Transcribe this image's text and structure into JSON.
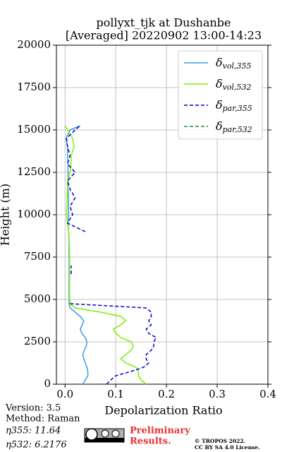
{
  "chart_data": {
    "type": "line",
    "title": "pollyxt_tjk at Dushanbe",
    "subtitle": "[Averaged] 20220902 13:00-14:23",
    "xlabel": "Depolarization Ratio",
    "ylabel": "Height (m)",
    "xlim": [
      -0.017,
      0.4
    ],
    "ylim": [
      0,
      20000
    ],
    "xticks": [
      {
        "value": 0,
        "label": "0.0"
      },
      0.1,
      0.2,
      0.3,
      0.4
    ],
    "yticks": [
      0,
      2500,
      5000,
      7500,
      10000,
      12500,
      15000,
      17500,
      20000
    ],
    "grid": true,
    "legend": "upper right",
    "y": [
      0,
      250,
      500,
      750,
      1000,
      1250,
      1500,
      1750,
      2000,
      2250,
      2500,
      2750,
      3000,
      3250,
      3500,
      3750,
      4000,
      4250,
      4500,
      4750,
      5000,
      5500,
      6000,
      6500,
      7000,
      7500,
      8000,
      8500,
      9000,
      9500,
      10000,
      10500,
      11000,
      11500,
      12000,
      12500,
      13000,
      13500,
      14000,
      14500,
      15000,
      15250
    ],
    "series": [
      {
        "name": "δvol,355",
        "color": "#3a9be0",
        "style": "solid",
        "values": [
          0.035,
          0.04,
          0.045,
          0.045,
          0.043,
          0.04,
          0.037,
          0.035,
          0.038,
          0.042,
          0.043,
          0.04,
          0.033,
          0.03,
          0.034,
          0.037,
          0.03,
          0.02,
          0.01,
          0.008,
          0.008,
          0.008,
          0.008,
          0.008,
          0.008,
          0.008,
          0.008,
          0.008,
          0.007,
          0.006,
          0.007,
          0.007,
          0.007,
          0.006,
          0.006,
          0.006,
          0.006,
          0.005,
          0.005,
          0.002,
          0.01,
          0.03
        ]
      },
      {
        "name": "δvol,532",
        "color": "#7cf000",
        "style": "solid",
        "values": [
          0.16,
          0.15,
          0.145,
          0.145,
          0.14,
          0.12,
          0.11,
          0.12,
          0.13,
          0.135,
          0.13,
          0.11,
          0.1,
          0.095,
          0.11,
          0.12,
          0.11,
          0.07,
          0.02,
          0.01,
          0.009,
          0.009,
          0.009,
          0.009,
          0.009,
          0.009,
          0.009,
          0.008,
          0.007,
          0.005,
          0.003,
          0.004,
          0.004,
          0.005,
          0.005,
          0.01,
          0.012,
          0.012,
          0.018,
          0.015,
          0.005,
          0.0
        ]
      },
      {
        "name": "δpar,355",
        "color": "#0000cc",
        "style": "dashed",
        "values": [
          0.082,
          0.09,
          0.1,
          0.13,
          0.155,
          0.165,
          0.16,
          0.16,
          0.17,
          0.175,
          0.175,
          0.18,
          0.165,
          0.16,
          0.17,
          0.165,
          0.17,
          0.17,
          0.16,
          0.01,
          null,
          null,
          null,
          0.012,
          0.012,
          null,
          null,
          null,
          0.04,
          0.005,
          0.015,
          0.01,
          0.02,
          0.01,
          0.005,
          0.02,
          0.005,
          0.01,
          0.005,
          0.003,
          0.02,
          0.03
        ]
      },
      {
        "name": "δpar,532",
        "color": "#1e8a3a",
        "style": "dashed",
        "values": [
          null,
          null,
          null,
          null,
          null,
          null,
          null,
          null,
          null,
          null,
          null,
          null,
          null,
          null,
          null,
          null,
          null,
          null,
          null,
          null,
          null,
          null,
          null,
          null,
          null,
          null,
          null,
          null,
          null,
          null,
          null,
          null,
          null,
          null,
          null,
          null,
          null,
          null,
          null,
          null,
          null,
          null
        ]
      }
    ]
  },
  "footer": {
    "version": "Version: 3.5",
    "method": "Method: Raman",
    "eta355": "η355:  11.64",
    "eta532": "η532: 6.2176",
    "preliminary": [
      "Preliminary",
      "Results."
    ],
    "copyright": [
      "© TROPOS 2022.",
      "CC BY SA 4.0 License."
    ]
  }
}
